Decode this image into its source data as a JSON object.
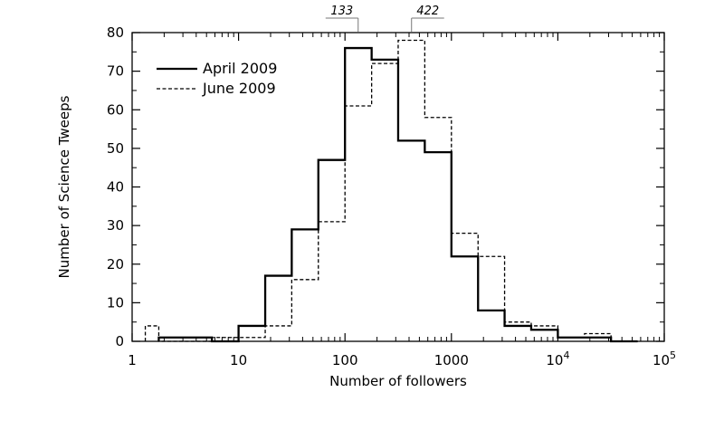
{
  "chart_data": {
    "type": "line",
    "title": "",
    "xlabel": "Number of followers",
    "ylabel": "Number of Science Tweeps",
    "x_scale": "log",
    "xlim": [
      1,
      100000
    ],
    "ylim": [
      0,
      80
    ],
    "x_ticks": [
      {
        "value": 1,
        "label": "1"
      },
      {
        "value": 10,
        "label": "10"
      },
      {
        "value": 100,
        "label": "100"
      },
      {
        "value": 1000,
        "label": "1000"
      },
      {
        "value": 10000,
        "label": "10",
        "exponent": "4"
      },
      {
        "value": 100000,
        "label": "10",
        "exponent": "5"
      }
    ],
    "y_ticks": [
      0,
      10,
      20,
      30,
      40,
      50,
      60,
      70,
      80
    ],
    "grid": false,
    "legend_position": "top-left",
    "series": [
      {
        "name": "April 2009",
        "style": "solid",
        "bin_edges": [
          1.78,
          3.16,
          5.62,
          10,
          17.8,
          31.6,
          56.2,
          100,
          178,
          316,
          562,
          1000,
          1780,
          3160,
          5620,
          10000,
          17800,
          31600,
          56200
        ],
        "values": [
          1,
          1,
          0,
          4,
          17,
          29,
          47,
          76,
          73,
          52,
          49,
          22,
          8,
          4,
          3,
          1,
          1,
          0
        ]
      },
      {
        "name": "June 2009",
        "style": "dashed",
        "bin_edges": [
          1.33,
          1.78,
          3.16,
          5.62,
          10,
          17.8,
          31.6,
          56.2,
          100,
          178,
          316,
          562,
          1000,
          1780,
          3160,
          5620,
          10000,
          17800,
          31600
        ],
        "values": [
          4,
          0,
          0,
          1,
          1,
          4,
          16,
          31,
          61,
          72,
          78,
          58,
          28,
          22,
          5,
          4,
          1,
          2
        ]
      }
    ],
    "annotations": [
      {
        "label": "133",
        "x": 133
      },
      {
        "label": "422",
        "x": 422
      }
    ]
  }
}
